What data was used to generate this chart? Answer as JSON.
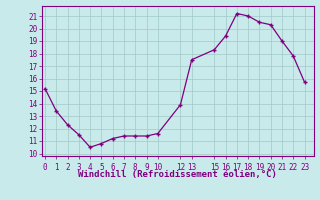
{
  "x": [
    0,
    1,
    2,
    3,
    4,
    5,
    6,
    7,
    8,
    9,
    10,
    12,
    13,
    15,
    16,
    17,
    18,
    19,
    20,
    21,
    22,
    23
  ],
  "y": [
    15.2,
    13.4,
    12.3,
    11.5,
    10.5,
    10.8,
    11.2,
    11.4,
    11.4,
    11.4,
    11.6,
    13.9,
    17.5,
    18.3,
    19.4,
    21.2,
    21.0,
    20.5,
    20.3,
    19.0,
    17.8,
    15.7
  ],
  "xtick_labels": [
    "0",
    "1",
    "2",
    "3",
    "4",
    "5",
    "6",
    "7",
    "8",
    "9",
    "10",
    "1213",
    "15161718192021",
    "2223"
  ],
  "yticks": [
    10,
    11,
    12,
    13,
    14,
    15,
    16,
    17,
    18,
    19,
    20,
    21
  ],
  "ylim": [
    9.8,
    21.8
  ],
  "xlim": [
    -0.3,
    23.8
  ],
  "xlabel": "Windchill (Refroidissement éolien,°C)",
  "line_color": "#800080",
  "bg_color": "#c8eaea",
  "grid_color": "#a0c8c8",
  "tick_fontsize": 6.5,
  "xlabel_fontsize": 6.5
}
